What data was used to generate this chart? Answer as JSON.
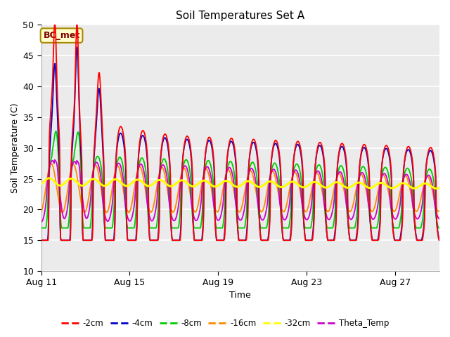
{
  "title": "Soil Temperatures Set A",
  "xlabel": "Time",
  "ylabel": "Soil Temperature (C)",
  "ylim": [
    10,
    50
  ],
  "yticks": [
    10,
    15,
    20,
    25,
    30,
    35,
    40,
    45,
    50
  ],
  "xtick_labels": [
    "Aug 11",
    "Aug 15",
    "Aug 19",
    "Aug 23",
    "Aug 27"
  ],
  "xtick_positions": [
    0,
    4,
    8,
    12,
    16
  ],
  "n_days": 18,
  "series_colors": {
    "-2cm": "#ff0000",
    "-4cm": "#0000cc",
    "-8cm": "#00cc00",
    "-16cm": "#ff8800",
    "-32cm": "#ffff00",
    "Theta_Temp": "#cc00cc"
  },
  "bc_met_label": "BC_met",
  "bc_met_color": "#ffffcc",
  "bc_met_text_color": "#800000",
  "bc_met_edge_color": "#aa8800",
  "plot_bg_color": "#ebebeb",
  "fig_bg_color": "#ffffff",
  "grid_color": "#ffffff",
  "legend_linestyle": "--"
}
